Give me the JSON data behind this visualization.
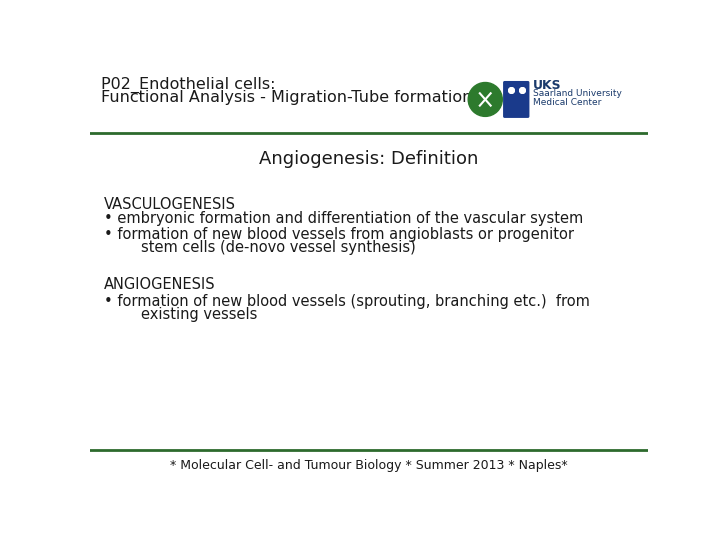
{
  "bg_color": "#ffffff",
  "header_line_color": "#2d6a2d",
  "footer_line_color": "#2d6a2d",
  "title_line1": "P02_Endothelial cells:",
  "title_line2": "Functional Analysis - Migration-Tube formation",
  "title_color": "#1a1a1a",
  "title_fontsize": 11.5,
  "subtitle": "Angiogenesis: Definition",
  "subtitle_fontsize": 13,
  "subtitle_color": "#1a1a1a",
  "section1_heading": "VASCULOGENESIS",
  "section1_bullet1": "• embryonic formation and differentiation of the vascular system",
  "section1_bullet2a": "• formation of new blood vessels from angioblasts or progenitor",
  "section1_bullet2b": "        stem cells (de-novo vessel synthesis)",
  "section2_heading": "ANGIOGENESIS",
  "section2_bullet1a": "• formation of new blood vessels (sprouting, branching etc.)  from",
  "section2_bullet1b": "        existing vessels",
  "body_fontsize": 10.5,
  "heading_fontsize": 10.5,
  "footer_text": "* Molecular Cell- and Tumour Biology * Summer 2013 * Naples*",
  "footer_fontsize": 9,
  "text_color": "#1a1a1a",
  "logo_uks": "UKS",
  "logo_line2": "Saarland University",
  "logo_line3": "Medical Center",
  "logo_color": "#1a3a6b",
  "logo_green": "#2d7a2d",
  "logo_blue": "#1a3a8b"
}
